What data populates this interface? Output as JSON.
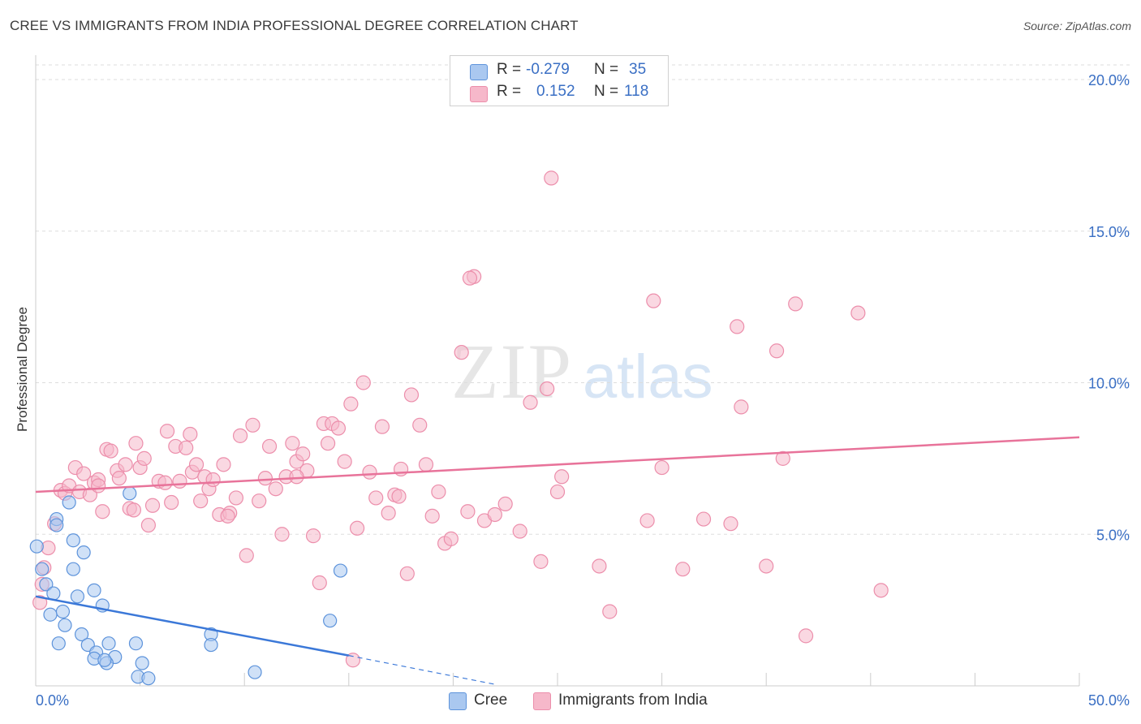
{
  "header": {
    "title": "CREE VS IMMIGRANTS FROM INDIA PROFESSIONAL DEGREE CORRELATION CHART",
    "source": "Source: ZipAtlas.com"
  },
  "watermark": {
    "zip": "ZIP",
    "atlas": "atlas"
  },
  "stats": [
    {
      "r_label": "R =",
      "r_value": "-0.279",
      "n_label": "N =",
      "n_value": "35",
      "color": "#aac8f0"
    },
    {
      "r_label": "R =",
      "r_value": "0.152",
      "n_label": "N =",
      "n_value": "118",
      "color": "#f6b8ca"
    }
  ],
  "legend": [
    {
      "label": "Cree",
      "color": "#aac8f0"
    },
    {
      "label": "Immigrants from India",
      "color": "#f6b8ca"
    }
  ],
  "colors": {
    "cree_fill": "#aac8f0",
    "cree_stroke": "#5d93db",
    "cree_line": "#3b78d8",
    "india_fill": "#f6b8ca",
    "india_stroke": "#ec8eab",
    "india_line": "#e8739a",
    "tick_text": "#3a6fc4",
    "grid": "#dddddd"
  },
  "chart_data": {
    "type": "scatter",
    "title": "CREE VS IMMIGRANTS FROM INDIA PROFESSIONAL DEGREE CORRELATION CHART",
    "xlabel": "",
    "ylabel": "Professional Degree",
    "xlim": [
      0,
      50
    ],
    "ylim": [
      0,
      20
    ],
    "x_tick_labels": [
      "0.0%",
      "50.0%"
    ],
    "y_ticks": [
      5,
      10,
      15,
      20
    ],
    "y_tick_labels": [
      "5.0%",
      "10.0%",
      "15.0%",
      "20.0%"
    ],
    "grid": "horizontal dashed",
    "legend_position": "bottom-center",
    "series": [
      {
        "name": "Cree",
        "r": -0.279,
        "n": 35,
        "trend": {
          "x0": 0,
          "y0": 2.95,
          "x1": 15,
          "y1": 1.0,
          "dashed_to_x": 22,
          "dashed_to_y": 0.05
        },
        "points": [
          [
            0.05,
            4.6
          ],
          [
            0.3,
            3.85
          ],
          [
            0.5,
            3.35
          ],
          [
            0.85,
            3.05
          ],
          [
            0.7,
            2.35
          ],
          [
            1.0,
            5.5
          ],
          [
            1.6,
            6.05
          ],
          [
            1.8,
            3.85
          ],
          [
            1.8,
            4.8
          ],
          [
            2.3,
            4.4
          ],
          [
            2.0,
            2.95
          ],
          [
            2.8,
            3.15
          ],
          [
            3.2,
            2.65
          ],
          [
            1.3,
            2.45
          ],
          [
            1.4,
            2.0
          ],
          [
            2.2,
            1.7
          ],
          [
            1.1,
            1.4
          ],
          [
            2.5,
            1.35
          ],
          [
            2.9,
            1.1
          ],
          [
            3.5,
            1.4
          ],
          [
            3.8,
            0.95
          ],
          [
            2.8,
            0.9
          ],
          [
            3.4,
            0.75
          ],
          [
            3.3,
            0.85
          ],
          [
            4.8,
            1.4
          ],
          [
            5.1,
            0.75
          ],
          [
            4.9,
            0.3
          ],
          [
            5.4,
            0.25
          ],
          [
            4.5,
            6.35
          ],
          [
            8.4,
            1.7
          ],
          [
            8.4,
            1.35
          ],
          [
            10.5,
            0.45
          ],
          [
            14.1,
            2.15
          ],
          [
            14.6,
            3.8
          ],
          [
            1.0,
            5.3
          ]
        ]
      },
      {
        "name": "Immigrants from India",
        "r": 0.152,
        "n": 118,
        "trend": {
          "x0": 0,
          "y0": 6.4,
          "x1": 50,
          "y1": 8.2
        },
        "points": [
          [
            0.3,
            3.35
          ],
          [
            0.4,
            3.9
          ],
          [
            0.6,
            4.55
          ],
          [
            0.2,
            2.75
          ],
          [
            0.9,
            5.35
          ],
          [
            1.2,
            6.45
          ],
          [
            1.4,
            6.35
          ],
          [
            1.6,
            6.6
          ],
          [
            1.9,
            7.2
          ],
          [
            2.1,
            6.4
          ],
          [
            2.3,
            7.0
          ],
          [
            2.6,
            6.3
          ],
          [
            2.8,
            6.7
          ],
          [
            3.0,
            6.8
          ],
          [
            3.2,
            5.75
          ],
          [
            3.4,
            7.8
          ],
          [
            3.6,
            7.75
          ],
          [
            3.9,
            7.1
          ],
          [
            4.0,
            6.85
          ],
          [
            4.3,
            7.3
          ],
          [
            4.5,
            5.85
          ],
          [
            4.8,
            8.0
          ],
          [
            5.0,
            7.2
          ],
          [
            5.2,
            7.5
          ],
          [
            5.4,
            5.3
          ],
          [
            5.6,
            5.95
          ],
          [
            5.9,
            6.75
          ],
          [
            6.2,
            6.7
          ],
          [
            6.3,
            8.4
          ],
          [
            6.5,
            6.05
          ],
          [
            6.7,
            7.9
          ],
          [
            6.9,
            6.75
          ],
          [
            7.2,
            7.85
          ],
          [
            7.4,
            8.3
          ],
          [
            7.5,
            7.05
          ],
          [
            7.7,
            7.3
          ],
          [
            7.9,
            6.1
          ],
          [
            8.1,
            6.9
          ],
          [
            8.3,
            6.5
          ],
          [
            8.5,
            6.8
          ],
          [
            8.8,
            5.65
          ],
          [
            9.0,
            7.3
          ],
          [
            9.3,
            5.7
          ],
          [
            9.6,
            6.2
          ],
          [
            9.8,
            8.25
          ],
          [
            10.1,
            4.3
          ],
          [
            10.4,
            8.6
          ],
          [
            10.7,
            6.1
          ],
          [
            11.0,
            6.85
          ],
          [
            11.2,
            7.9
          ],
          [
            11.5,
            6.5
          ],
          [
            11.8,
            5.0
          ],
          [
            12.0,
            6.9
          ],
          [
            12.3,
            8.0
          ],
          [
            12.5,
            7.4
          ],
          [
            12.8,
            7.65
          ],
          [
            13.0,
            7.1
          ],
          [
            13.3,
            4.95
          ],
          [
            13.6,
            3.4
          ],
          [
            13.8,
            8.65
          ],
          [
            14.0,
            8.0
          ],
          [
            14.2,
            8.65
          ],
          [
            14.5,
            8.5
          ],
          [
            14.8,
            7.4
          ],
          [
            15.1,
            9.3
          ],
          [
            15.4,
            5.2
          ],
          [
            15.7,
            10.0
          ],
          [
            16.0,
            7.05
          ],
          [
            16.3,
            6.2
          ],
          [
            16.6,
            8.55
          ],
          [
            16.9,
            5.7
          ],
          [
            17.2,
            6.3
          ],
          [
            17.5,
            7.15
          ],
          [
            17.8,
            3.7
          ],
          [
            18.0,
            9.6
          ],
          [
            18.4,
            8.6
          ],
          [
            18.7,
            7.3
          ],
          [
            19.0,
            5.6
          ],
          [
            19.3,
            6.4
          ],
          [
            19.6,
            4.7
          ],
          [
            19.9,
            4.85
          ],
          [
            20.4,
            11.0
          ],
          [
            20.7,
            5.75
          ],
          [
            21.0,
            13.5
          ],
          [
            21.5,
            5.45
          ],
          [
            22.0,
            5.65
          ],
          [
            22.5,
            6.0
          ],
          [
            23.2,
            5.1
          ],
          [
            23.7,
            9.35
          ],
          [
            24.2,
            4.1
          ],
          [
            24.5,
            9.8
          ],
          [
            25.0,
            6.4
          ],
          [
            25.2,
            6.9
          ],
          [
            27.0,
            3.95
          ],
          [
            27.5,
            2.45
          ],
          [
            29.3,
            5.45
          ],
          [
            29.6,
            12.7
          ],
          [
            30.0,
            7.2
          ],
          [
            31.0,
            3.85
          ],
          [
            32.0,
            5.5
          ],
          [
            33.3,
            5.35
          ],
          [
            33.6,
            11.85
          ],
          [
            33.8,
            9.2
          ],
          [
            35.0,
            3.95
          ],
          [
            35.5,
            11.05
          ],
          [
            35.8,
            7.5
          ],
          [
            36.4,
            12.6
          ],
          [
            36.9,
            1.65
          ],
          [
            39.4,
            12.3
          ],
          [
            40.5,
            3.15
          ],
          [
            24.7,
            16.75
          ],
          [
            20.8,
            13.45
          ],
          [
            15.2,
            0.85
          ],
          [
            17.4,
            6.25
          ],
          [
            12.5,
            6.9
          ],
          [
            9.2,
            5.6
          ],
          [
            3.0,
            6.6
          ],
          [
            4.7,
            5.8
          ]
        ]
      }
    ]
  }
}
